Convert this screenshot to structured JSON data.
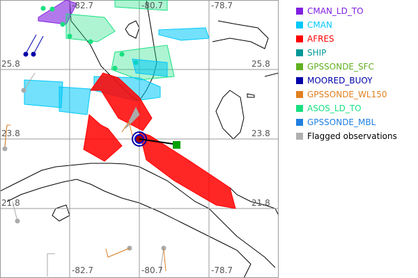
{
  "map": {
    "lon_labels_top": [
      "-82.7",
      "-80.7",
      "-78.7"
    ],
    "lon_labels_bottom": [
      "-82.7",
      "-80.7",
      "-78.7"
    ],
    "lat_labels_left": [
      "25.8",
      "23.8",
      "21.8"
    ],
    "lat_labels_right": [
      "25.8",
      "23.8",
      "21.8"
    ]
  },
  "legend": [
    {
      "label": "CMAN_LD_TO",
      "color": "#8020e0"
    },
    {
      "label": "CMAN",
      "color": "#00c8f8"
    },
    {
      "label": "AFRES",
      "color": "#ff0000"
    },
    {
      "label": "SHIP",
      "color": "#009898"
    },
    {
      "label": "GPSSONDE_SFC",
      "color": "#60b020"
    },
    {
      "label": "MOORED_BUOY",
      "color": "#0000a8"
    },
    {
      "label": "GPSSONDE_WL150",
      "color": "#e08020"
    },
    {
      "label": "ASOS_LD_TO",
      "color": "#18e080"
    },
    {
      "label": "GPSSONDE_MBL",
      "color": "#2080e0"
    },
    {
      "label": "Flagged observations",
      "color": "#b0b0b0"
    }
  ]
}
